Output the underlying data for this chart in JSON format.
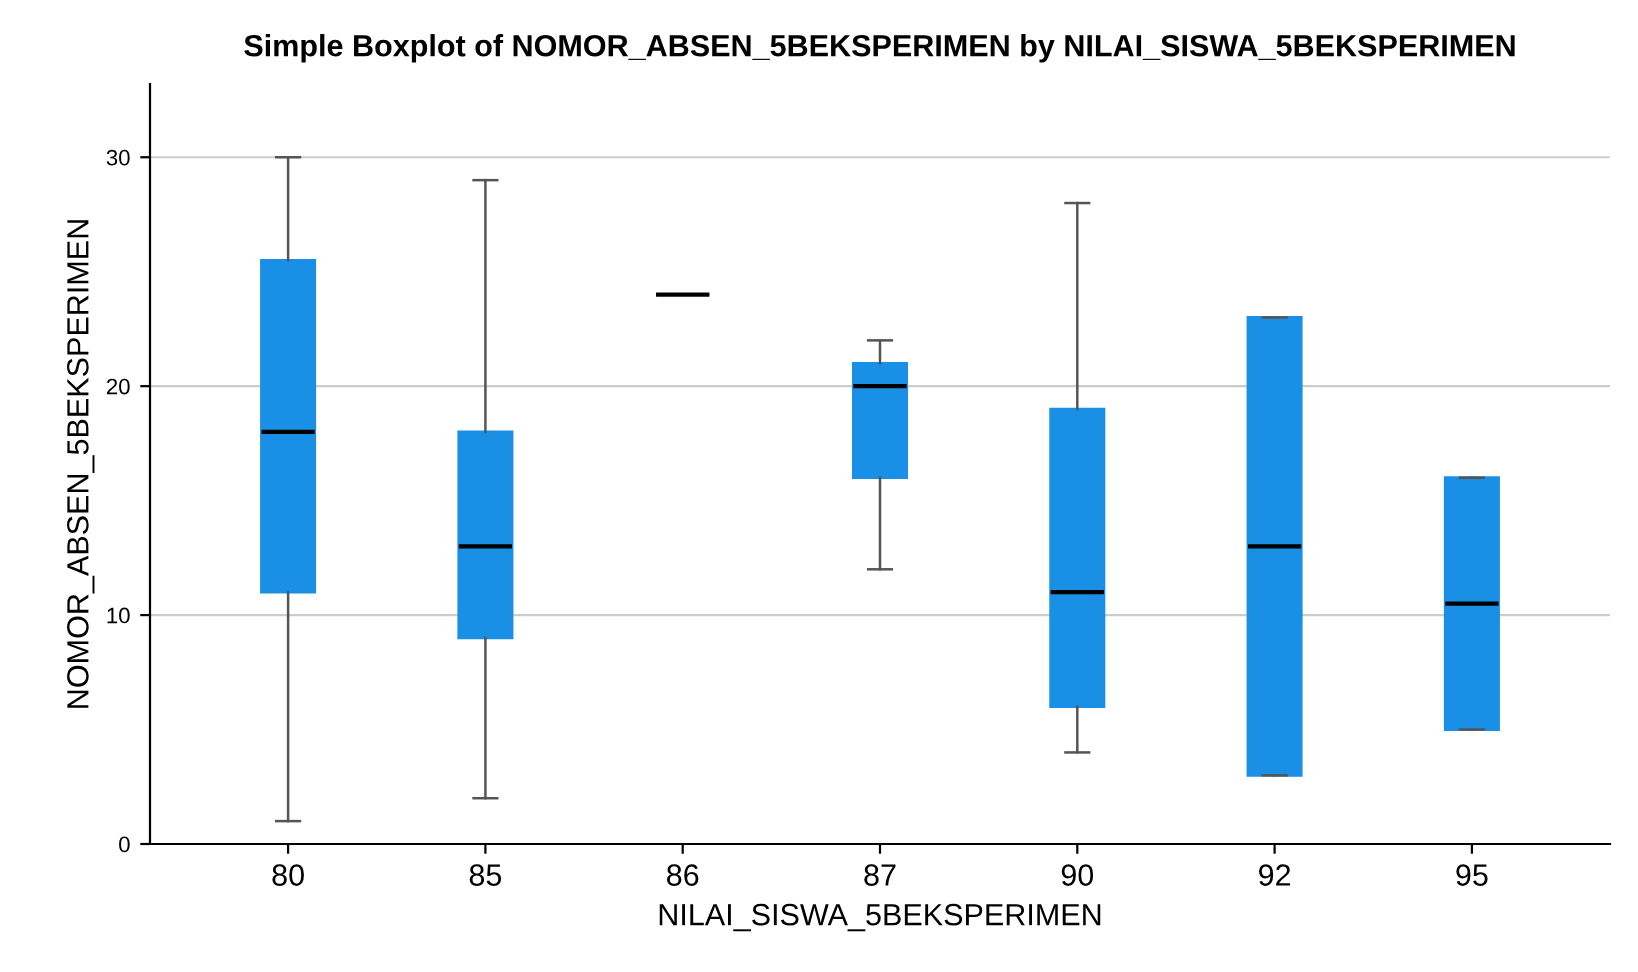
{
  "chart_data": {
    "type": "box",
    "title": "Simple Boxplot of NOMOR_ABSEN_5BEKSPERIMEN by NILAI_SISWA_5BEKSPERIMEN",
    "xlabel": "NILAI_SISWA_5BEKSPERIMEN",
    "ylabel": "NOMOR_ABSEN_5BEKSPERIMEN",
    "categories": [
      "80",
      "85",
      "86",
      "87",
      "90",
      "92",
      "95"
    ],
    "color": "#1a8fe6",
    "boxes": [
      {
        "low": 1,
        "q1": 11,
        "median": 18,
        "q3": 25.5,
        "high": 30
      },
      {
        "low": 2,
        "q1": 9,
        "median": 13,
        "q3": 18,
        "high": 29
      },
      {
        "low": 24,
        "q1": 24,
        "median": 24,
        "q3": 24,
        "high": 24
      },
      {
        "low": 12,
        "q1": 16,
        "median": 20,
        "q3": 21,
        "high": 22
      },
      {
        "low": 4,
        "q1": 6,
        "median": 11,
        "q3": 19,
        "high": 28
      },
      {
        "low": 3,
        "q1": 3,
        "median": 13,
        "q3": 23,
        "high": 23
      },
      {
        "low": 5,
        "q1": 5,
        "median": 10.5,
        "q3": 16,
        "high": 16
      }
    ],
    "ylim": [
      0,
      33.2
    ],
    "yticks": [
      0,
      10,
      20,
      30
    ],
    "grid": "y"
  }
}
